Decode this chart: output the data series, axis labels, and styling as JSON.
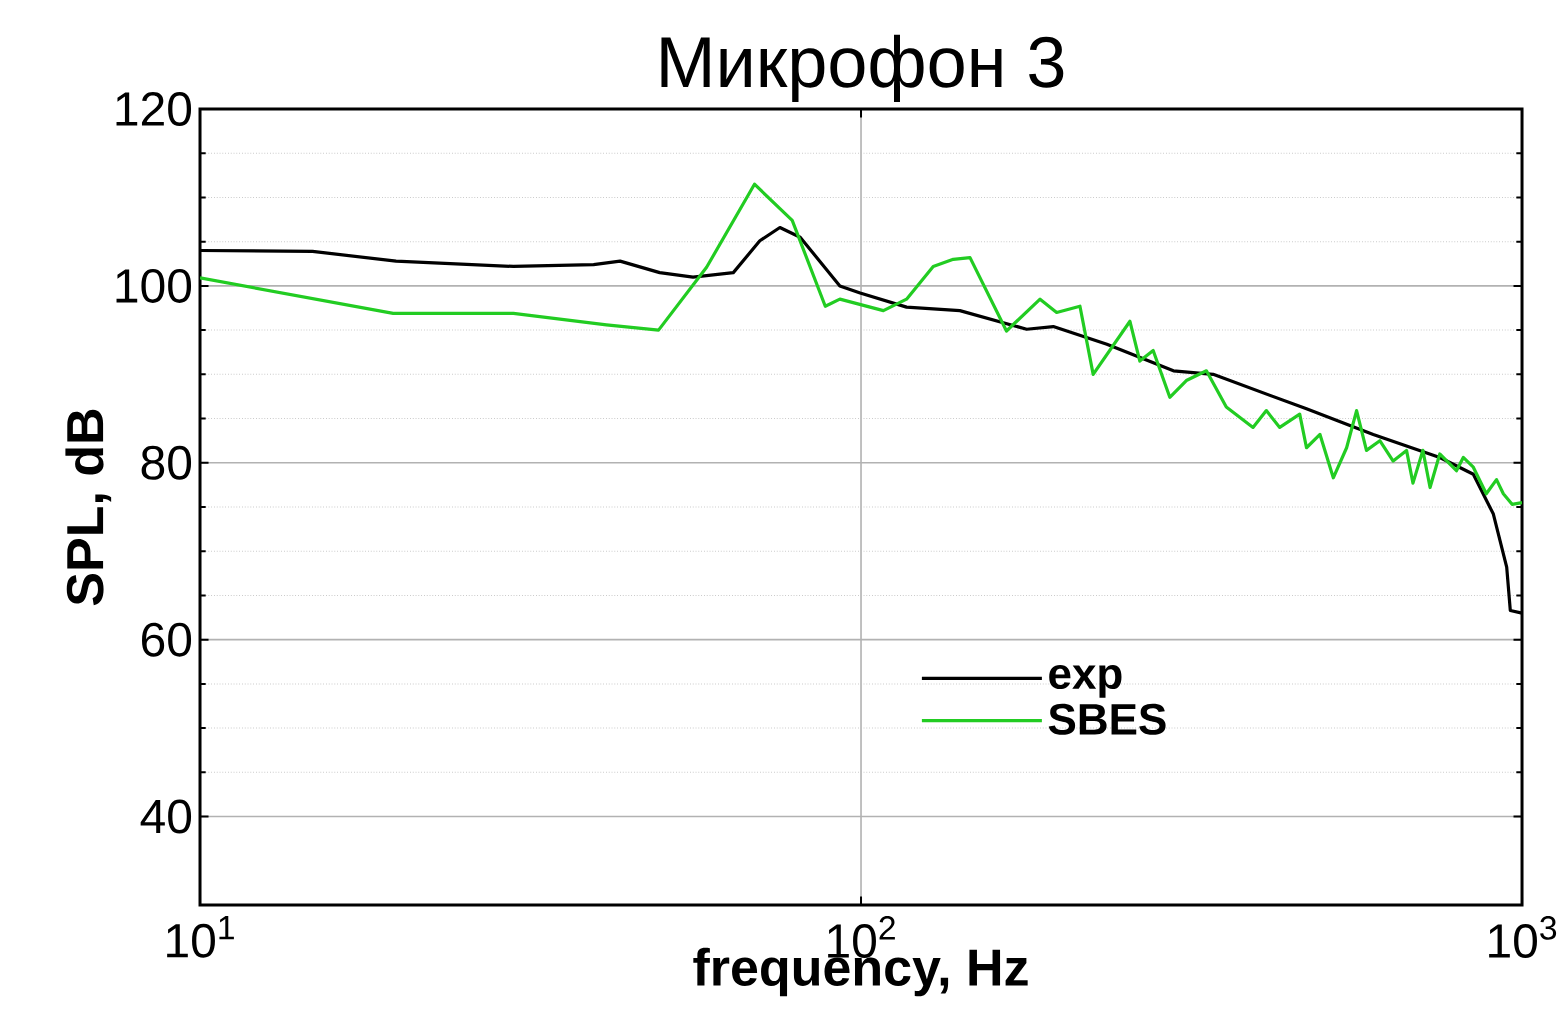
{
  "chart_data": {
    "type": "line",
    "title": "Микрофон 3",
    "xlabel": "frequency, Hz",
    "ylabel": "SPL, dB",
    "log": "x",
    "grid": true,
    "legend": "bottom",
    "xlim": [
      10,
      1000
    ],
    "ylim": [
      30,
      120
    ],
    "xticks": [
      {
        "value": 10,
        "label": "10$^{1}$"
      },
      {
        "value": 100,
        "label": "10$^{2}$"
      },
      {
        "value": 1000,
        "label": "10$^{3}$"
      }
    ],
    "yticks": [
      40,
      60,
      80,
      100,
      120
    ],
    "series": [
      {
        "name": "exp",
        "color": "#000000",
        "x": [
          10,
          14.8,
          19.8,
          29.8,
          39.4,
          43.2,
          49.6,
          55.7,
          64.1,
          70.3,
          75.4,
          80.9,
          92.9,
          99.7,
          117.2,
          141.1,
          178.1,
          195.4,
          235.5,
          296.9,
          341,
          472,
          595.6,
          751,
          844,
          905,
          948,
          960,
          1000
        ],
        "values": [
          104.0,
          103.9,
          102.8,
          102.2,
          102.4,
          102.8,
          101.5,
          101.0,
          101.5,
          105.1,
          106.6,
          105.5,
          100.0,
          99.2,
          97.6,
          97.2,
          95.1,
          95.4,
          93.4,
          90.4,
          90.0,
          86.1,
          83.2,
          80.6,
          78.7,
          74.2,
          68.2,
          63.3,
          63
        ]
      },
      {
        "name": "SBES",
        "color": "#22cc22",
        "x": [
          10,
          19.6,
          29.8,
          41.2,
          49.4,
          58.4,
          69.0,
          78.7,
          88.3,
          92.9,
          108.1,
          117.2,
          128.6,
          137.9,
          146.2,
          166,
          186.6,
          197.7,
          214.4,
          224.5,
          255.2,
          264.1,
          276.7,
          293.2,
          310.6,
          333.1,
          357,
          391.8,
          410.4,
          430,
          461,
          472,
          494.7,
          518.2,
          542.8,
          562,
          581.7,
          609.4,
          638.4,
          668.8,
          684,
          708,
          726,
          751,
          796,
          815,
          844,
          883,
          915,
          937,
          966,
          1000
        ],
        "values": [
          100.9,
          96.9,
          96.9,
          95.6,
          95.0,
          102.1,
          111.5,
          107.4,
          97.7,
          98.5,
          97.2,
          98.5,
          102.2,
          103.0,
          103.2,
          94.9,
          98.5,
          97.0,
          97.7,
          90.0,
          96.0,
          91.5,
          92.7,
          87.4,
          89.3,
          90.4,
          86.3,
          84.0,
          85.9,
          84.0,
          85.5,
          81.7,
          83.2,
          78.3,
          81.7,
          85.9,
          81.4,
          82.5,
          80.2,
          81.4,
          77.7,
          81.4,
          77.2,
          81.0,
          79.1,
          80.6,
          79.5,
          76.5,
          78.1,
          76.5,
          75.3,
          75.5
        ]
      }
    ]
  }
}
